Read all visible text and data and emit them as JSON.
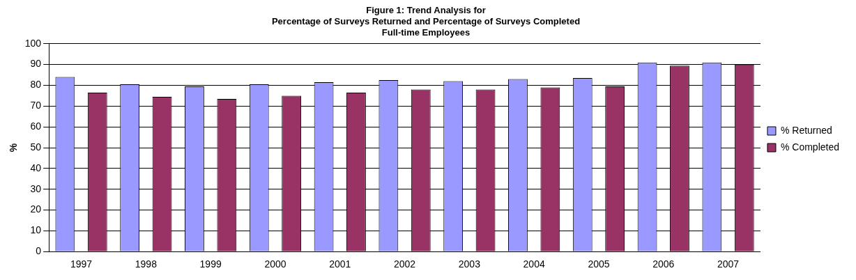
{
  "chart_data": {
    "type": "bar",
    "title": "Figure 1: Trend Analysis for\nPercentage of Surveys Returned and Percentage of Surveys Completed\nFull-time Employees",
    "ylabel": "%",
    "categories": [
      "1997",
      "1998",
      "1999",
      "2000",
      "2001",
      "2002",
      "2003",
      "2004",
      "2005",
      "2006",
      "2007"
    ],
    "series": [
      {
        "name": "% Returned",
        "color": "#9999ff",
        "values": [
          84,
          80.5,
          79.5,
          80.5,
          81.5,
          82.5,
          82,
          83,
          83.5,
          91,
          91
        ]
      },
      {
        "name": "% Completed",
        "color": "#993366",
        "values": [
          76.5,
          74.5,
          73.5,
          75,
          76.5,
          78,
          78,
          79,
          79.5,
          89.5,
          90
        ]
      }
    ],
    "ylim": [
      0,
      100
    ],
    "yticks": [
      0,
      10,
      20,
      30,
      40,
      50,
      60,
      70,
      80,
      90,
      100
    ],
    "grid": "y",
    "legend": "right"
  }
}
